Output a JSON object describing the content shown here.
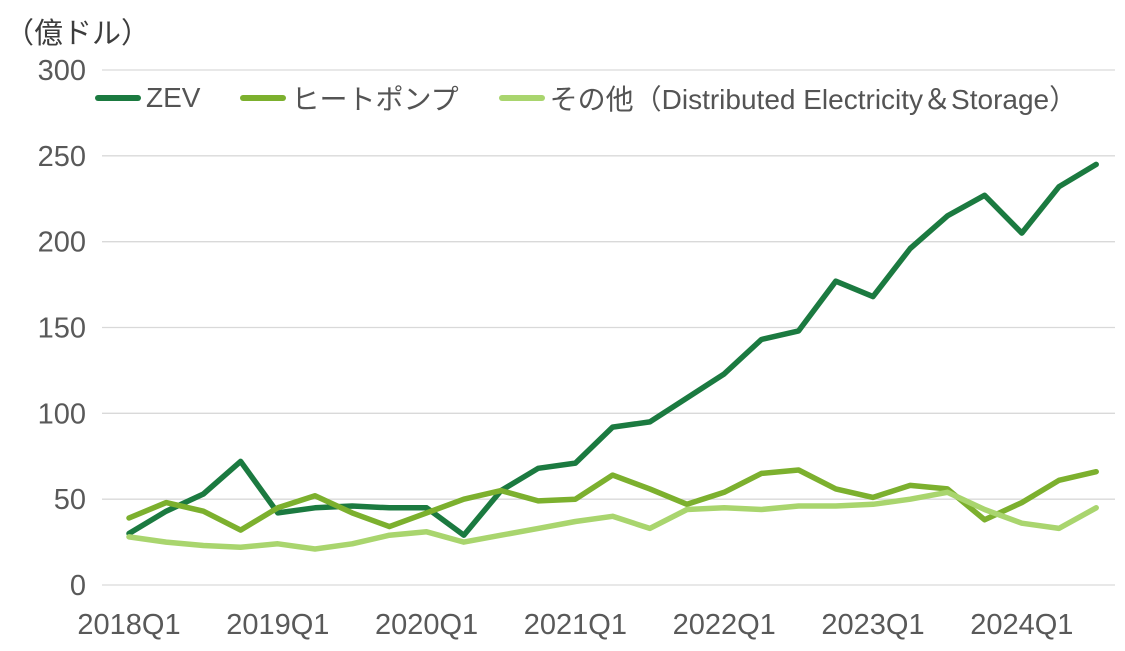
{
  "unit_label": "（億ドル）",
  "chart_data": {
    "type": "line",
    "title": "",
    "xlabel": "",
    "ylabel": "（億ドル）",
    "ylim": [
      0,
      300
    ],
    "yticks": [
      0,
      50,
      100,
      150,
      200,
      250,
      300
    ],
    "xticks": [
      "2018Q1",
      "2019Q1",
      "2020Q1",
      "2021Q1",
      "2022Q1",
      "2023Q1",
      "2024Q1"
    ],
    "xtick_indices": [
      0,
      4,
      8,
      12,
      16,
      20,
      24
    ],
    "grid": true,
    "legend_position": "top-left inside plot",
    "categories": [
      "2018Q1",
      "2018Q2",
      "2018Q3",
      "2018Q4",
      "2019Q1",
      "2019Q2",
      "2019Q3",
      "2019Q4",
      "2020Q1",
      "2020Q2",
      "2020Q3",
      "2020Q4",
      "2021Q1",
      "2021Q2",
      "2021Q3",
      "2021Q4",
      "2022Q1",
      "2022Q2",
      "2022Q3",
      "2022Q4",
      "2023Q1",
      "2023Q2",
      "2023Q3",
      "2023Q4",
      "2024Q1",
      "2024Q2",
      "2024Q3"
    ],
    "series": [
      {
        "name": "ZEV",
        "color": "#1B7A40",
        "values": [
          30,
          43,
          53,
          72,
          42,
          45,
          46,
          45,
          45,
          29,
          55,
          68,
          71,
          92,
          95,
          109,
          123,
          143,
          148,
          177,
          168,
          196,
          215,
          227,
          205,
          232,
          245
        ]
      },
      {
        "name": "ヒートポンプ",
        "color": "#7CB02E",
        "values": [
          39,
          48,
          43,
          32,
          45,
          52,
          42,
          34,
          42,
          50,
          55,
          49,
          50,
          64,
          56,
          47,
          54,
          65,
          67,
          56,
          51,
          58,
          56,
          38,
          48,
          61,
          66
        ]
      },
      {
        "name": "その他（Distributed Electricity＆Storage）",
        "color": "#A9D56E",
        "values": [
          28,
          25,
          23,
          22,
          24,
          21,
          24,
          29,
          31,
          25,
          29,
          33,
          37,
          40,
          33,
          44,
          45,
          44,
          46,
          46,
          47,
          50,
          54,
          44,
          36,
          33,
          45
        ]
      }
    ]
  },
  "style": {
    "grid_color": "#D9D9D9",
    "axis_text_color": "#595959",
    "unit_label_color": "#3d3d3d",
    "line_width": 5.5
  }
}
